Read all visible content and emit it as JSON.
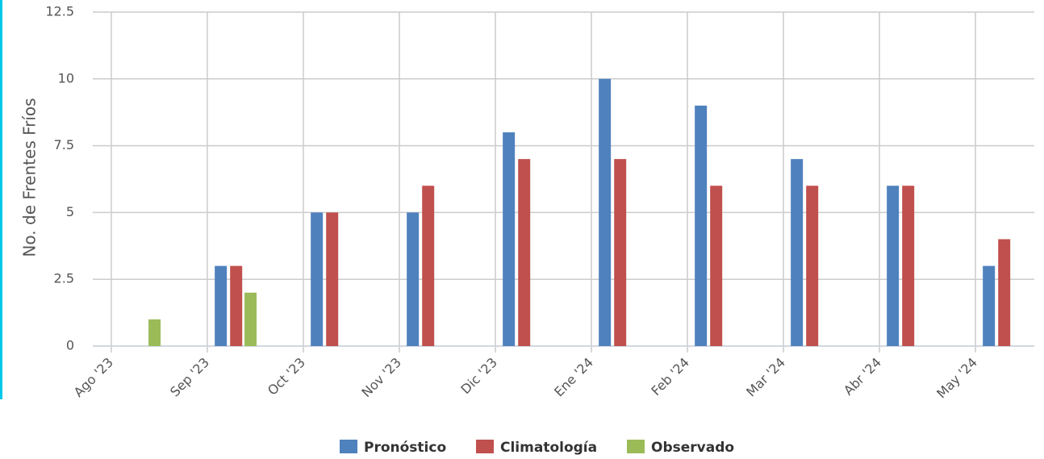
{
  "chart_data": {
    "type": "bar",
    "y_label": "No. de Frentes Fríos",
    "categories": [
      "Ago '23",
      "Sep '23",
      "Oct '23",
      "Nov '23",
      "Dic '23",
      "Ene '24",
      "Feb '24",
      "Mar '24",
      "Abr '24",
      "May '24"
    ],
    "series": [
      {
        "name": "Pronóstico",
        "color": "#4f81bd",
        "values": [
          null,
          3,
          5,
          5,
          8,
          10,
          9,
          7,
          6,
          3
        ]
      },
      {
        "name": "Climatología",
        "color": "#c0504d",
        "values": [
          null,
          3,
          5,
          6,
          7,
          7,
          6,
          6,
          6,
          4
        ]
      },
      {
        "name": "Observado",
        "color": "#9bbb59",
        "values": [
          1,
          2,
          null,
          null,
          null,
          null,
          null,
          null,
          null,
          null
        ]
      }
    ],
    "ylim": [
      0,
      12.5
    ],
    "yticks": [
      0,
      2.5,
      5,
      7.5,
      10,
      12.5
    ],
    "grid": true,
    "legend": "bottom"
  }
}
